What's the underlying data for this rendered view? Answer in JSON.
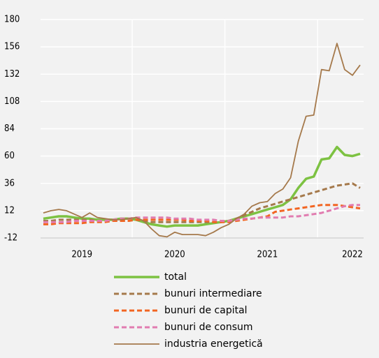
{
  "chart_data": {
    "type": "line",
    "categories": [
      null,
      null,
      null,
      null,
      null,
      "2019",
      null,
      null,
      null,
      null,
      null,
      null,
      null,
      null,
      null,
      null,
      null,
      "2020",
      null,
      null,
      null,
      null,
      null,
      null,
      null,
      null,
      null,
      null,
      null,
      "2021",
      null,
      null,
      null,
      null,
      null,
      null,
      null,
      null,
      null,
      null,
      "2022",
      null
    ],
    "series": [
      {
        "name": "total",
        "color": "#7dc242",
        "style": "solid",
        "values": [
          5,
          6,
          7,
          7,
          6,
          5,
          5,
          4,
          4,
          4,
          5,
          5,
          4,
          2,
          0,
          -1,
          -2,
          -1,
          -1,
          -1,
          -1,
          0,
          1,
          2,
          3,
          5,
          7,
          9,
          11,
          13,
          15,
          17,
          22,
          32,
          40,
          42,
          57,
          58,
          68,
          61,
          60,
          62
        ]
      },
      {
        "name": "bunuri intermediare",
        "color": "#a5794b",
        "style": "dashed",
        "values": [
          3,
          3,
          4,
          4,
          4,
          4,
          4,
          3,
          3,
          3,
          3,
          3,
          4,
          3,
          2,
          2,
          2,
          2,
          2,
          2,
          2,
          2,
          2,
          2,
          3,
          5,
          8,
          11,
          14,
          16,
          18,
          20,
          22,
          24,
          26,
          28,
          30,
          32,
          34,
          35,
          36,
          32
        ]
      },
      {
        "name": "bunuri de capital",
        "color": "#f26522",
        "style": "dashed",
        "values": [
          0,
          0,
          1,
          1,
          1,
          1,
          2,
          2,
          2,
          3,
          3,
          3,
          4,
          4,
          4,
          4,
          4,
          4,
          4,
          3,
          3,
          3,
          2,
          2,
          2,
          3,
          4,
          5,
          6,
          7,
          11,
          12,
          13,
          14,
          15,
          16,
          17,
          17,
          17,
          16,
          15,
          14
        ]
      },
      {
        "name": "bunuri de consum",
        "color": "#e17cb0",
        "style": "dashed",
        "values": [
          2,
          2,
          2,
          2,
          3,
          3,
          3,
          3,
          3,
          4,
          5,
          5,
          6,
          6,
          6,
          6,
          6,
          5,
          5,
          5,
          4,
          4,
          4,
          3,
          3,
          4,
          5,
          5,
          6,
          6,
          6,
          6,
          7,
          7,
          8,
          9,
          10,
          12,
          14,
          16,
          17,
          17
        ]
      },
      {
        "name": "industria energetică",
        "color": "#a5794b",
        "style": "thin",
        "values": [
          10,
          12,
          13,
          12,
          9,
          6,
          10,
          6,
          5,
          4,
          4,
          5,
          6,
          3,
          -4,
          -10,
          -11,
          -7,
          -9,
          -9,
          -9,
          -10,
          -7,
          -3,
          0,
          5,
          9,
          16,
          19,
          20,
          27,
          31,
          41,
          73,
          95,
          96,
          136,
          135,
          159,
          136,
          131,
          140
        ]
      }
    ],
    "ylim": [
      -12,
      180
    ],
    "yticks": [
      -12,
      12,
      36,
      60,
      84,
      108,
      132,
      156,
      180
    ],
    "grid": true
  }
}
